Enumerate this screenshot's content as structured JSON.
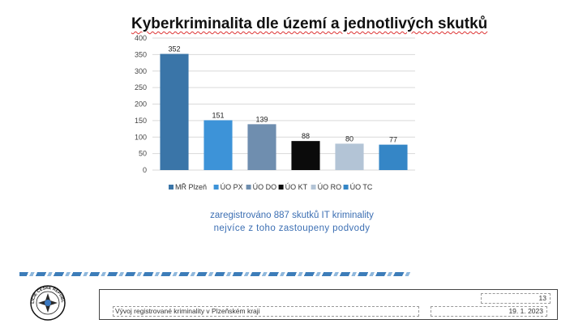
{
  "chart_data": {
    "type": "bar",
    "title": "Kyberkriminalita dle území a jednotlivých skutků",
    "categories": [
      "MŘ Plzeň",
      "ÚO PX",
      "ÚO DO",
      "ÚO KT",
      "ÚO RO",
      "ÚO TC"
    ],
    "values": [
      352,
      151,
      139,
      88,
      80,
      77
    ],
    "colors": [
      "#3a75a8",
      "#3d93d8",
      "#6f8eaf",
      "#0b0b0b",
      "#b3c4d6",
      "#3586c6"
    ],
    "ylim": [
      0,
      400
    ],
    "yticks": [
      "0",
      "50",
      "100",
      "150",
      "200",
      "250",
      "300",
      "350",
      "400"
    ],
    "grid": true,
    "legend": "bottom"
  },
  "caption": {
    "line1": "zaregistrováno 887 skutků IT kriminality",
    "line2": "nejvíce z toho zastoupeny podvody"
  },
  "footer": {
    "page_number": "13",
    "document_title": "Vývoj registrované kriminality v Plzeňském kraji",
    "date": "19. 1. 2023"
  },
  "logo": {
    "icon": "police-cz-emblem-icon",
    "text": "POLICIE ČESKÉ REPUBLIKY"
  }
}
